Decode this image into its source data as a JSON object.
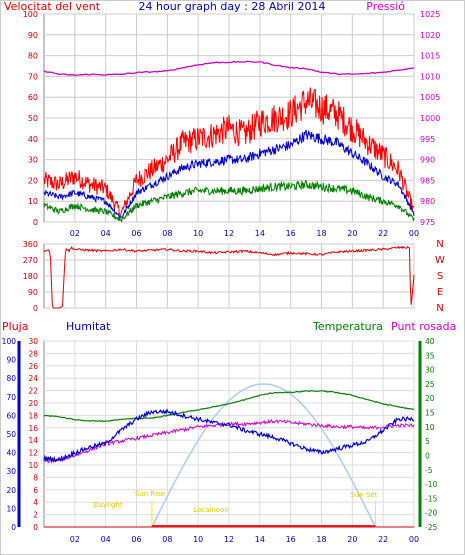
{
  "title": "24 hour graph day : 28 Abril 2014",
  "x_ticks": [
    "02",
    "04",
    "06",
    "08",
    "10",
    "12",
    "14",
    "16",
    "18",
    "20",
    "22",
    "00"
  ],
  "colors": {
    "wind_gust": "#ff0000",
    "wind_avg": "#0000cc",
    "wind_min": "#008000",
    "pressure": "#cc00cc",
    "direction": "#dd0000",
    "rain": "#dd0000",
    "humidity": "#0000cc",
    "temperature": "#008000",
    "dew_point": "#cc00cc",
    "solar": "#aaccee",
    "marker": "#ffee00",
    "frame": "#555555"
  },
  "panel1": {
    "left_label": "Velocitat del vent",
    "right_label": "Pressió",
    "left_ticks": [
      "100",
      "90",
      "80",
      "70",
      "60",
      "50",
      "40",
      "30",
      "20",
      "10",
      "0"
    ],
    "right_ticks": [
      "1025",
      "1020",
      "1015",
      "1010",
      "1005",
      "1000",
      "995",
      "990",
      "985",
      "980",
      "975"
    ]
  },
  "panel2": {
    "left_ticks": [
      "360",
      "270",
      "180",
      "90",
      "0"
    ],
    "compass": [
      "N",
      "W",
      "S",
      "E",
      "N"
    ]
  },
  "panel3": {
    "labels": {
      "rain": "Pluja",
      "humidity": "Humitat",
      "temperature": "Temperatura",
      "dew": "Punt rosada"
    },
    "rain_ticks": [
      "30",
      "28",
      "26",
      "24",
      "22",
      "20",
      "18",
      "16",
      "14",
      "12",
      "10",
      "8",
      "6",
      "4",
      "2",
      "0"
    ],
    "humidity_ticks": [
      "100",
      "90",
      "80",
      "70",
      "60",
      "50",
      "40",
      "30",
      "20",
      "10",
      "0"
    ],
    "temp_ticks": [
      "40",
      "35",
      "30",
      "25",
      "20",
      "15",
      "10",
      "5",
      "0",
      "-5",
      "-10",
      "-15",
      "-20",
      "-25"
    ],
    "sun_labels": {
      "daylight": "Daylight",
      "sunrise": "Sun Rise",
      "localnoon": "Localnoon",
      "sunset": "Sun Set"
    }
  },
  "chart_data": [
    {
      "type": "line",
      "title": "Velocitat del vent / Pressió",
      "x_unit": "hour",
      "ylim_left": [
        0,
        100
      ],
      "ylim_right": [
        975,
        1025
      ],
      "series": [
        {
          "name": "Velocitat del vent",
          "axis": "left",
          "x": [
            0,
            1,
            2,
            3,
            4,
            5,
            6,
            7,
            8,
            9,
            10,
            11,
            12,
            13,
            14,
            15,
            16,
            17,
            18,
            19,
            20,
            21,
            22,
            23,
            24
          ],
          "values": [
            20,
            18,
            22,
            18,
            16,
            4,
            20,
            25,
            30,
            38,
            40,
            42,
            45,
            42,
            48,
            50,
            52,
            58,
            55,
            52,
            45,
            38,
            32,
            25,
            5
          ]
        },
        {
          "name": "",
          "axis": "left",
          "x": [
            0,
            1,
            2,
            3,
            4,
            5,
            6,
            7,
            8,
            9,
            10,
            11,
            12,
            13,
            14,
            15,
            16,
            17,
            18,
            19,
            20,
            21,
            22,
            23,
            24
          ],
          "values": [
            14,
            12,
            14,
            12,
            10,
            2,
            14,
            18,
            22,
            26,
            28,
            29,
            30,
            30,
            33,
            35,
            37,
            42,
            40,
            38,
            33,
            28,
            22,
            18,
            4
          ]
        },
        {
          "name": "",
          "axis": "left",
          "x": [
            0,
            1,
            2,
            3,
            4,
            5,
            6,
            7,
            8,
            9,
            10,
            11,
            12,
            13,
            14,
            15,
            16,
            17,
            18,
            19,
            20,
            21,
            22,
            23,
            24
          ],
          "values": [
            8,
            5,
            8,
            6,
            5,
            1,
            8,
            10,
            12,
            14,
            15,
            15,
            15,
            15,
            16,
            17,
            17,
            18,
            17,
            16,
            15,
            12,
            10,
            8,
            1
          ]
        },
        {
          "name": "Pressió",
          "axis": "right",
          "x": [
            0,
            1,
            2,
            3,
            4,
            5,
            6,
            7,
            8,
            9,
            10,
            11,
            12,
            13,
            14,
            15,
            16,
            17,
            18,
            19,
            20,
            21,
            22,
            23,
            24
          ],
          "values": [
            1011.3,
            1010.5,
            1010.3,
            1010.5,
            1010.4,
            1010.5,
            1010.9,
            1011.1,
            1011.3,
            1012.1,
            1012.8,
            1013.3,
            1013.4,
            1013.5,
            1013.5,
            1012.7,
            1012.1,
            1011.9,
            1011.0,
            1010.6,
            1010.5,
            1010.7,
            1011.0,
            1011.5,
            1012.1
          ]
        }
      ]
    },
    {
      "type": "line",
      "title": "",
      "x_unit": "hour",
      "ylim": [
        0,
        360
      ],
      "series": [
        {
          "name": "",
          "x": [
            0,
            0.2,
            0.4,
            0.55,
            0.6,
            1.0,
            1.2,
            1.4,
            1.6,
            1.8,
            2.0,
            3,
            4,
            5,
            6,
            7,
            8,
            9,
            10,
            11,
            12,
            13,
            14,
            15,
            16,
            17,
            18,
            19,
            20,
            21,
            22,
            23,
            23.7,
            23.8,
            24
          ],
          "values": [
            320,
            330,
            320,
            0,
            0,
            0,
            10,
            340,
            320,
            340,
            330,
            325,
            320,
            330,
            320,
            325,
            330,
            320,
            320,
            310,
            315,
            320,
            310,
            300,
            310,
            305,
            300,
            315,
            320,
            325,
            330,
            340,
            340,
            0,
            180
          ]
        }
      ]
    },
    {
      "type": "line",
      "title": "",
      "x_unit": "hour",
      "ylim_humidity": [
        0,
        100
      ],
      "ylim_temp": [
        -25,
        40
      ],
      "series": [
        {
          "name": "Pluja",
          "axis": "rain",
          "x": [
            0,
            24
          ],
          "values": [
            0,
            0
          ]
        },
        {
          "name": "Humitat",
          "axis": "humidity",
          "x": [
            0,
            1,
            2,
            3,
            4,
            5,
            6,
            7,
            8,
            9,
            10,
            11,
            12,
            13,
            14,
            15,
            16,
            17,
            18,
            19,
            20,
            21,
            22,
            23,
            24
          ],
          "values": [
            37,
            36,
            40,
            43,
            45,
            52,
            58,
            62,
            62,
            60,
            58,
            56,
            55,
            52,
            50,
            48,
            45,
            42,
            40,
            42,
            44,
            46,
            52,
            58,
            58
          ]
        },
        {
          "name": "Temperatura",
          "axis": "temp",
          "x": [
            0,
            1,
            2,
            3,
            4,
            5,
            6,
            7,
            8,
            9,
            10,
            11,
            12,
            13,
            14,
            15,
            16,
            17,
            18,
            19,
            20,
            21,
            22,
            23,
            24
          ],
          "values": [
            14,
            13.5,
            12.5,
            12,
            12,
            12.5,
            13,
            13,
            14,
            15,
            16,
            17,
            18,
            19.5,
            21,
            22,
            22,
            22.5,
            22.5,
            22,
            21,
            19.5,
            18,
            17,
            16
          ]
        },
        {
          "name": "Punt rosada",
          "axis": "temp",
          "x": [
            0,
            1,
            2,
            3,
            4,
            5,
            6,
            7,
            8,
            9,
            10,
            11,
            12,
            13,
            14,
            15,
            16,
            17,
            18,
            19,
            20,
            21,
            22,
            23,
            24
          ],
          "values": [
            -2,
            -1.5,
            0,
            2,
            4,
            5,
            6,
            7,
            8,
            9,
            10,
            10.5,
            11,
            11,
            11.5,
            12,
            11.5,
            11,
            10.5,
            10,
            10,
            9.5,
            10,
            10.5,
            10.5
          ]
        }
      ]
    }
  ]
}
